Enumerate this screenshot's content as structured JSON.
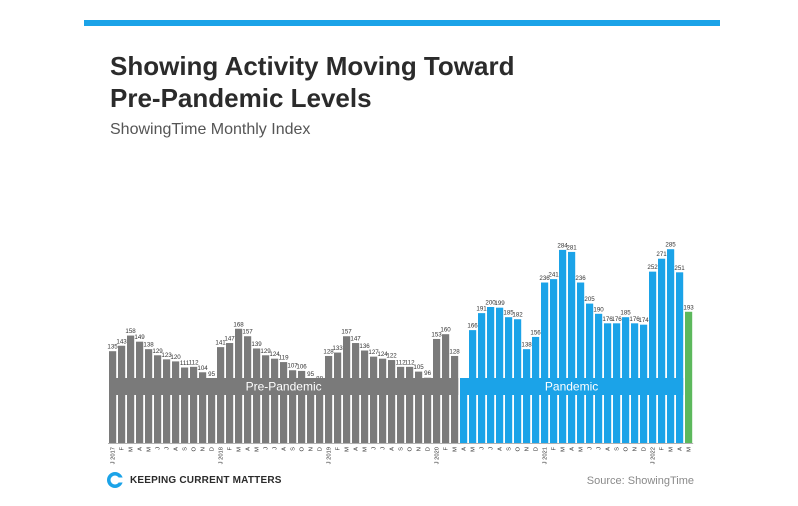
{
  "header": {
    "title_line1": "Showing Activity Moving Toward",
    "title_line2": "Pre-Pandemic Levels",
    "subtitle": "ShowingTime Monthly Index"
  },
  "footer": {
    "brand": "KEEPING CURRENT MATTERS",
    "source": "Source: ShowingTime"
  },
  "colors": {
    "accent_bar": "#1ba3e8",
    "pre_pandemic": "#7a7a7a",
    "pandemic": "#1ba3e8",
    "latest": "#5cb85c"
  },
  "chart_data": {
    "type": "bar",
    "title": "ShowingTime Monthly Index",
    "xlabel": "",
    "ylabel": "",
    "ylim": [
      0,
      300
    ],
    "grid": false,
    "legend": "none",
    "periods": [
      {
        "label": "Pre-Pandemic",
        "start_index": 0,
        "end_index": 38,
        "color": "#7a7a7a"
      },
      {
        "label": "Pandemic",
        "start_index": 39,
        "end_index": 63,
        "color": "#1ba3e8"
      },
      {
        "label": "",
        "start_index": 64,
        "end_index": 64,
        "color": "#5cb85c"
      }
    ],
    "categories": [
      "J 2017",
      "F",
      "M",
      "A",
      "M",
      "J",
      "J",
      "A",
      "S",
      "O",
      "N",
      "D",
      "J 2018",
      "F",
      "M",
      "A",
      "M",
      "J",
      "J",
      "A",
      "S",
      "O",
      "N",
      "D",
      "J 2019",
      "F",
      "M",
      "A",
      "M",
      "J",
      "J",
      "A",
      "S",
      "O",
      "N",
      "D",
      "J 2020",
      "F",
      "M",
      "A",
      "M",
      "J",
      "J",
      "A",
      "S",
      "O",
      "N",
      "D",
      "J 2021",
      "F",
      "M",
      "A",
      "M",
      "J",
      "J",
      "A",
      "S",
      "O",
      "N",
      "D",
      "J 2022",
      "F",
      "M",
      "A",
      "M"
    ],
    "values": [
      135,
      143,
      158,
      149,
      138,
      129,
      123,
      120,
      111,
      112,
      104,
      95,
      141,
      147,
      168,
      157,
      139,
      129,
      124,
      119,
      107,
      106,
      95,
      88,
      128,
      133,
      157,
      147,
      136,
      127,
      124,
      122,
      112,
      112,
      105,
      96,
      153,
      160,
      128,
      85,
      166,
      191,
      200,
      199,
      185,
      182,
      138,
      156,
      236,
      241,
      284,
      281,
      236,
      205,
      190,
      176,
      176,
      185,
      176,
      174,
      252,
      271,
      285,
      251,
      193
    ]
  }
}
